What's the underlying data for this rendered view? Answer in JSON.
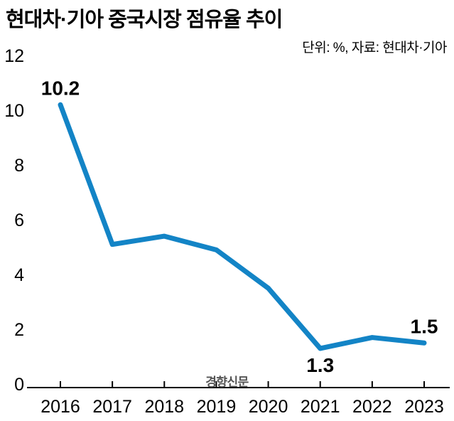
{
  "title": "현대차·기아 중국시장 점유율 추이",
  "unit_note": "단위: %, 자료: 현대차·기아",
  "watermark": "경향신문",
  "colors": {
    "line": "#1384c6",
    "axis": "#000000",
    "tick_text": "#000000",
    "data_label": "#000000",
    "watermark": "#555555",
    "background": "#ffffff"
  },
  "chart_data": {
    "type": "line",
    "title": "현대차·기아 중국시장 점유율 추이",
    "subtitle": "단위: %, 자료: 현대차·기아",
    "categories": [
      "2016",
      "2017",
      "2018",
      "2019",
      "2020",
      "2021",
      "2022",
      "2023"
    ],
    "values": [
      10.2,
      5.1,
      5.4,
      4.9,
      3.5,
      1.3,
      1.7,
      1.5
    ],
    "xlabel": "",
    "ylabel": "",
    "ylim": [
      0,
      12
    ],
    "yticks": [
      0,
      2,
      4,
      6,
      8,
      10,
      12
    ],
    "grid": false,
    "legend": "none",
    "annotations": [
      {
        "category": "2016",
        "label": "10.2",
        "position": "above"
      },
      {
        "category": "2021",
        "label": "1.3",
        "position": "below"
      },
      {
        "category": "2023",
        "label": "1.5",
        "position": "above"
      }
    ]
  }
}
